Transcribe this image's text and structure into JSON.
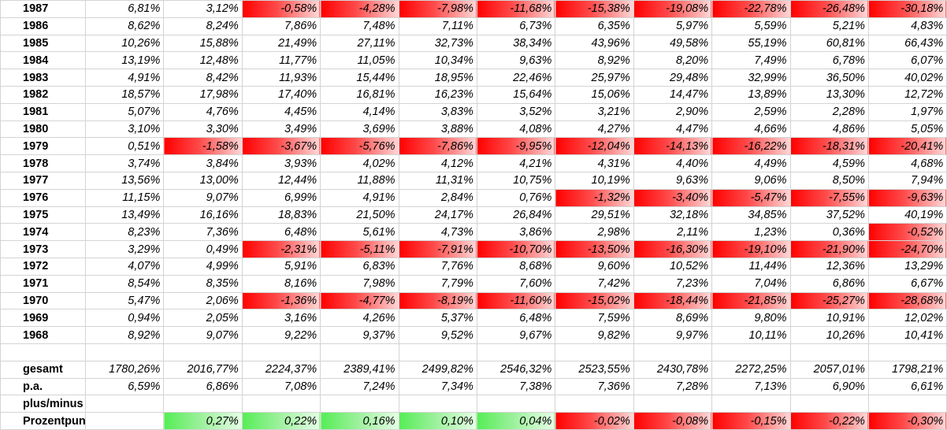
{
  "rows": [
    {
      "label": "1987",
      "values": [
        "6,81%",
        "3,12%",
        "-0,58%",
        "-4,28%",
        "-7,98%",
        "-11,68%",
        "-15,38%",
        "-19,08%",
        "-22,78%",
        "-26,48%",
        "-30,18%"
      ]
    },
    {
      "label": "1986",
      "values": [
        "8,62%",
        "8,24%",
        "7,86%",
        "7,48%",
        "7,11%",
        "6,73%",
        "6,35%",
        "5,97%",
        "5,59%",
        "5,21%",
        "4,83%"
      ]
    },
    {
      "label": "1985",
      "values": [
        "10,26%",
        "15,88%",
        "21,49%",
        "27,11%",
        "32,73%",
        "38,34%",
        "43,96%",
        "49,58%",
        "55,19%",
        "60,81%",
        "66,43%"
      ]
    },
    {
      "label": "1984",
      "values": [
        "13,19%",
        "12,48%",
        "11,77%",
        "11,05%",
        "10,34%",
        "9,63%",
        "8,92%",
        "8,20%",
        "7,49%",
        "6,78%",
        "6,07%"
      ]
    },
    {
      "label": "1983",
      "values": [
        "4,91%",
        "8,42%",
        "11,93%",
        "15,44%",
        "18,95%",
        "22,46%",
        "25,97%",
        "29,48%",
        "32,99%",
        "36,50%",
        "40,02%"
      ]
    },
    {
      "label": "1982",
      "values": [
        "18,57%",
        "17,98%",
        "17,40%",
        "16,81%",
        "16,23%",
        "15,64%",
        "15,06%",
        "14,47%",
        "13,89%",
        "13,30%",
        "12,72%"
      ]
    },
    {
      "label": "1981",
      "values": [
        "5,07%",
        "4,76%",
        "4,45%",
        "4,14%",
        "3,83%",
        "3,52%",
        "3,21%",
        "2,90%",
        "2,59%",
        "2,28%",
        "1,97%"
      ]
    },
    {
      "label": "1980",
      "values": [
        "3,10%",
        "3,30%",
        "3,49%",
        "3,69%",
        "3,88%",
        "4,08%",
        "4,27%",
        "4,47%",
        "4,66%",
        "4,86%",
        "5,05%"
      ]
    },
    {
      "label": "1979",
      "values": [
        "0,51%",
        "-1,58%",
        "-3,67%",
        "-5,76%",
        "-7,86%",
        "-9,95%",
        "-12,04%",
        "-14,13%",
        "-16,22%",
        "-18,31%",
        "-20,41%"
      ]
    },
    {
      "label": "1978",
      "values": [
        "3,74%",
        "3,84%",
        "3,93%",
        "4,02%",
        "4,12%",
        "4,21%",
        "4,31%",
        "4,40%",
        "4,49%",
        "4,59%",
        "4,68%"
      ]
    },
    {
      "label": "1977",
      "values": [
        "13,56%",
        "13,00%",
        "12,44%",
        "11,88%",
        "11,31%",
        "10,75%",
        "10,19%",
        "9,63%",
        "9,06%",
        "8,50%",
        "7,94%"
      ]
    },
    {
      "label": "1976",
      "values": [
        "11,15%",
        "9,07%",
        "6,99%",
        "4,91%",
        "2,84%",
        "0,76%",
        "-1,32%",
        "-3,40%",
        "-5,47%",
        "-7,55%",
        "-9,63%"
      ]
    },
    {
      "label": "1975",
      "values": [
        "13,49%",
        "16,16%",
        "18,83%",
        "21,50%",
        "24,17%",
        "26,84%",
        "29,51%",
        "32,18%",
        "34,85%",
        "37,52%",
        "40,19%"
      ]
    },
    {
      "label": "1974",
      "values": [
        "8,23%",
        "7,36%",
        "6,48%",
        "5,61%",
        "4,73%",
        "3,86%",
        "2,98%",
        "2,11%",
        "1,23%",
        "0,36%",
        "-0,52%"
      ]
    },
    {
      "label": "1973",
      "values": [
        "3,29%",
        "0,49%",
        "-2,31%",
        "-5,11%",
        "-7,91%",
        "-10,70%",
        "-13,50%",
        "-16,30%",
        "-19,10%",
        "-21,90%",
        "-24,70%"
      ]
    },
    {
      "label": "1972",
      "values": [
        "4,07%",
        "4,99%",
        "5,91%",
        "6,83%",
        "7,76%",
        "8,68%",
        "9,60%",
        "10,52%",
        "11,44%",
        "12,36%",
        "13,29%"
      ]
    },
    {
      "label": "1971",
      "values": [
        "8,54%",
        "8,35%",
        "8,16%",
        "7,98%",
        "7,79%",
        "7,60%",
        "7,42%",
        "7,23%",
        "7,04%",
        "6,86%",
        "6,67%"
      ]
    },
    {
      "label": "1970",
      "values": [
        "5,47%",
        "2,06%",
        "-1,36%",
        "-4,77%",
        "-8,19%",
        "-11,60%",
        "-15,02%",
        "-18,44%",
        "-21,85%",
        "-25,27%",
        "-28,68%"
      ]
    },
    {
      "label": "1969",
      "values": [
        "0,94%",
        "2,05%",
        "3,16%",
        "4,26%",
        "5,37%",
        "6,48%",
        "7,59%",
        "8,69%",
        "9,80%",
        "10,91%",
        "12,02%"
      ]
    },
    {
      "label": "1968",
      "values": [
        "8,92%",
        "9,07%",
        "9,22%",
        "9,37%",
        "9,52%",
        "9,67%",
        "9,82%",
        "9,97%",
        "10,11%",
        "10,26%",
        "10,41%"
      ]
    }
  ],
  "summary": {
    "gesamt": {
      "label": "gesamt",
      "values": [
        "1780,26%",
        "2016,77%",
        "2224,37%",
        "2389,41%",
        "2499,82%",
        "2546,32%",
        "2523,55%",
        "2430,78%",
        "2272,25%",
        "2057,01%",
        "1798,21%"
      ]
    },
    "pa": {
      "label": "p.a.",
      "values": [
        "6,59%",
        "6,86%",
        "7,08%",
        "7,24%",
        "7,34%",
        "7,38%",
        "7,36%",
        "7,28%",
        "7,13%",
        "6,90%",
        "6,61%"
      ]
    },
    "plusminus": {
      "label": "plus/minus"
    },
    "prozentpunkte": {
      "label": "Prozentpunkte",
      "values": [
        "",
        "0,27%",
        "0,22%",
        "0,16%",
        "0,10%",
        "0,04%",
        "-0,02%",
        "-0,08%",
        "-0,15%",
        "-0,22%",
        "-0,30%"
      ]
    }
  },
  "colors": {
    "negative": "#ff0000",
    "positive": "#55ee55",
    "grid": "#d4d4d4"
  }
}
